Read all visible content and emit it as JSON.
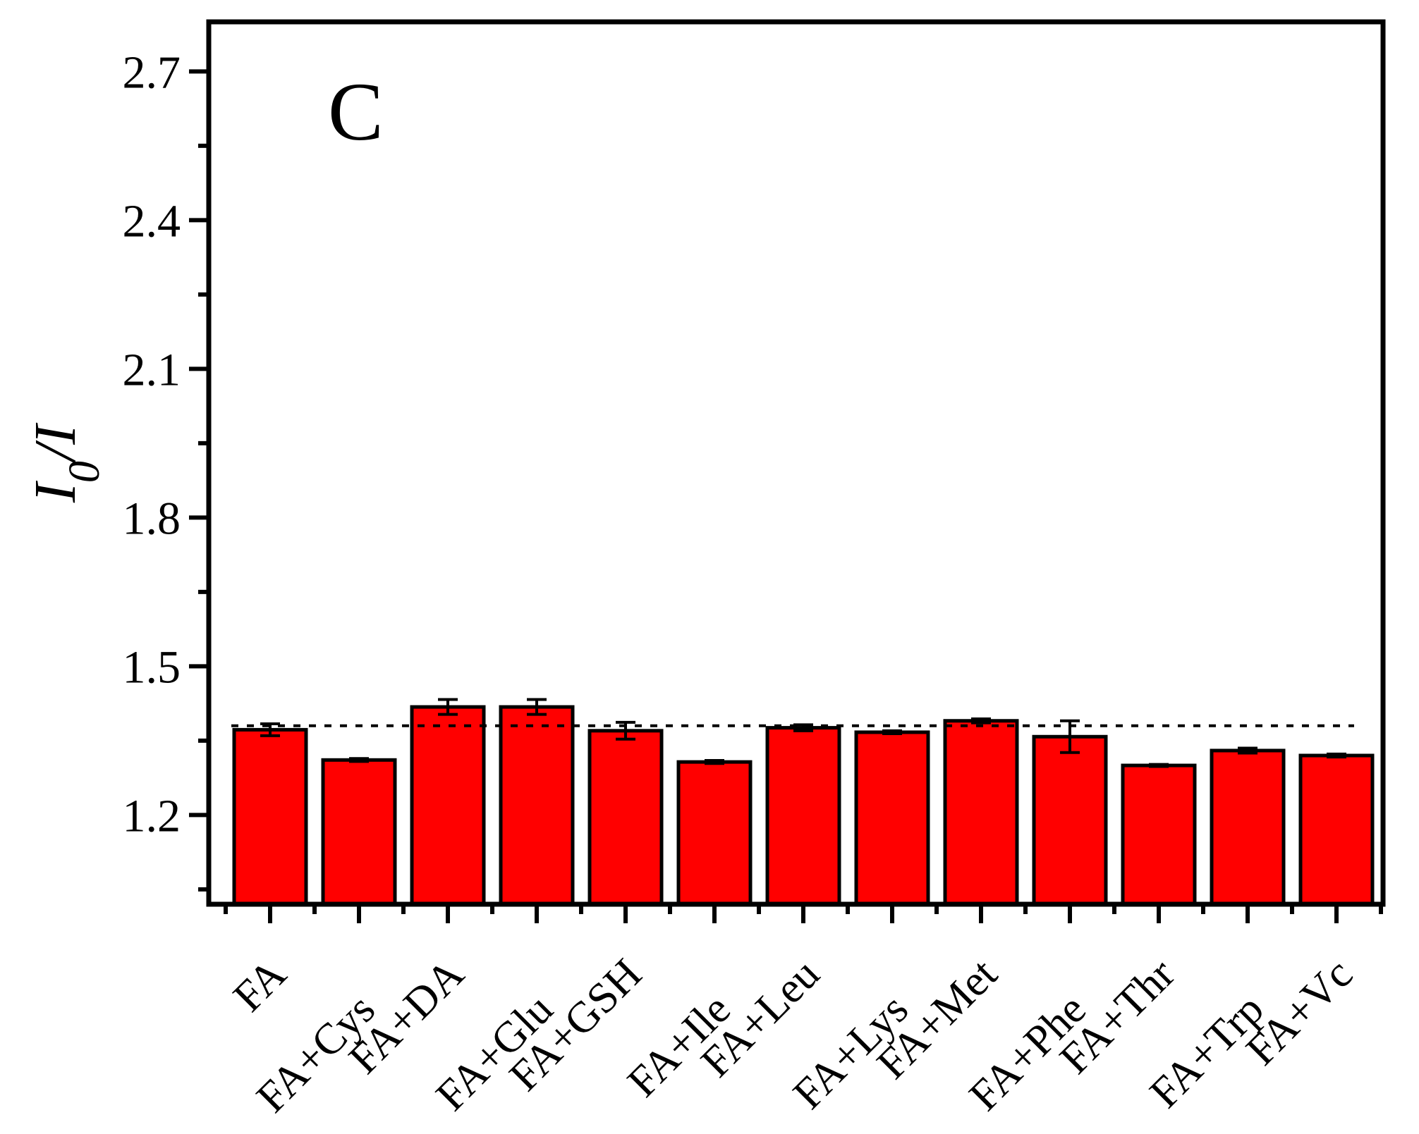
{
  "chart_data": {
    "type": "bar",
    "panel_label": "C",
    "ylabel_main": "I",
    "ylabel_sub": "0",
    "ylabel_tail": "/I",
    "xlabel": "",
    "categories": [
      "FA",
      "FA+Cys",
      "FA+DA",
      "FA+Glu",
      "FA+GSH",
      "FA+Ile",
      "FA+Leu",
      "FA+Lys",
      "FA+Met",
      "FA+Phe",
      "FA+Thr",
      "FA+Trp",
      "FA+Vc"
    ],
    "series": [
      {
        "values": [
          1.372,
          1.311,
          1.418,
          1.418,
          1.37,
          1.307,
          1.376,
          1.367,
          1.39,
          1.358,
          1.3,
          1.33,
          1.32
        ],
        "errors": [
          0.012,
          0.003,
          0.015,
          0.015,
          0.017,
          0.003,
          0.006,
          0.003,
          0.004,
          0.032,
          0.002,
          0.005,
          0.003
        ]
      }
    ],
    "reference_line": 1.38,
    "ylim": [
      1.02,
      2.8
    ],
    "yticks": [
      1.2,
      1.5,
      1.8,
      2.1,
      2.4,
      2.7
    ],
    "ytick_labels": [
      "1.2",
      "1.5",
      "1.8",
      "2.1",
      "2.4",
      "2.7"
    ],
    "grid": false,
    "legend": "none",
    "colors": {
      "bar": "#ff0000",
      "outline": "#000000"
    }
  }
}
